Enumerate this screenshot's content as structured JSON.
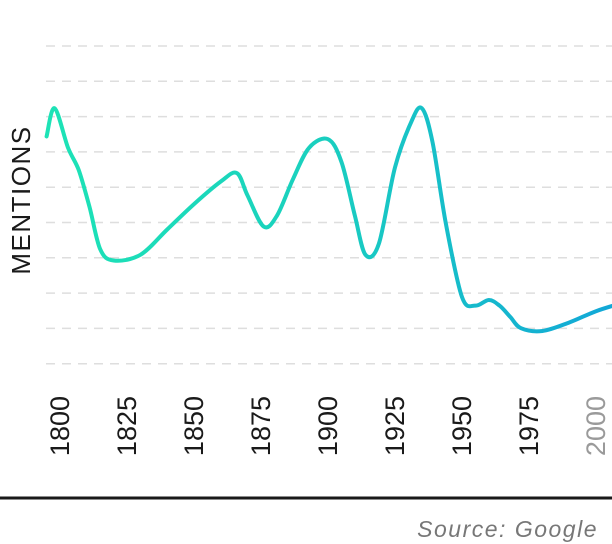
{
  "chart_data": {
    "type": "line",
    "xlabel": "",
    "ylabel": "MENTIONS",
    "xlim": [
      1795,
      2010
    ],
    "ylim": [
      0,
      100
    ],
    "grid": true,
    "gradient": [
      "#1de3b6",
      "#12a6d8"
    ],
    "x_ticks": [
      {
        "value": 1800,
        "label": "1800",
        "faded": false
      },
      {
        "value": 1825,
        "label": "1825",
        "faded": false
      },
      {
        "value": 1850,
        "label": "1850",
        "faded": false
      },
      {
        "value": 1875,
        "label": "1875",
        "faded": false
      },
      {
        "value": 1900,
        "label": "1900",
        "faded": false
      },
      {
        "value": 1925,
        "label": "1925",
        "faded": false
      },
      {
        "value": 1950,
        "label": "1950",
        "faded": false
      },
      {
        "value": 1975,
        "label": "1975",
        "faded": false
      },
      {
        "value": 2000,
        "label": "2000",
        "faded": true
      }
    ],
    "series": [
      {
        "x": [
          1795,
          1798,
          1803,
          1807,
          1811,
          1815,
          1820,
          1830,
          1840,
          1850,
          1860,
          1866,
          1870,
          1876,
          1881,
          1887,
          1893,
          1900,
          1905,
          1910,
          1914,
          1919,
          1925,
          1931,
          1935,
          1939,
          1944,
          1950,
          1955,
          1960,
          1964,
          1968,
          1972,
          1980,
          1990,
          2000,
          2010
        ],
        "y": [
          80,
          90,
          76,
          68,
          55,
          40,
          36,
          38,
          47,
          56,
          64,
          67,
          59,
          48,
          52,
          65,
          76,
          79,
          71,
          52,
          38,
          42,
          69,
          85,
          90,
          78,
          49,
          23,
          20,
          22,
          20,
          16,
          12,
          11,
          14,
          18,
          21
        ]
      }
    ]
  },
  "source": "Source: Google"
}
